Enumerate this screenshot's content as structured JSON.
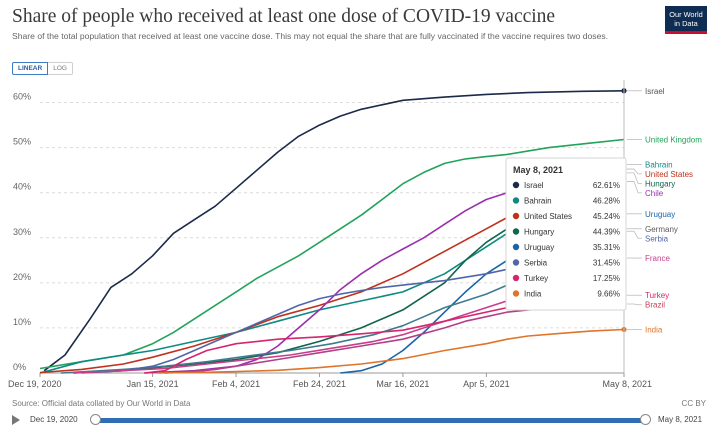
{
  "header": {
    "title": "Share of people who received at least one dose of COVID-19 vaccine",
    "subtitle": "Share of the total population that received at least one vaccine dose. This may not equal the share that are fully vaccinated if the vaccine requires two doses.",
    "logo_line1": "Our World",
    "logo_line2": "in Data"
  },
  "controls": {
    "linear_label": "LINEAR",
    "log_label": "LOG",
    "active_scale": "linear"
  },
  "footer": {
    "source": "Source: Official data collated by Our World in Data",
    "license": "CC BY"
  },
  "timeline": {
    "start_label": "Dec 19, 2020",
    "end_label": "May 8, 2021",
    "start_fraction": 0,
    "end_fraction": 1
  },
  "tooltip": {
    "date": "May 8, 2021",
    "rows": [
      {
        "country": "Israel",
        "value": "62.61%",
        "color": "#1b2a48"
      },
      {
        "country": "Bahrain",
        "value": "46.28%",
        "color": "#0f8a83"
      },
      {
        "country": "United States",
        "value": "45.24%",
        "color": "#c1301c"
      },
      {
        "country": "Hungary",
        "value": "44.39%",
        "color": "#10654a"
      },
      {
        "country": "Uruguay",
        "value": "35.31%",
        "color": "#1a64a8"
      },
      {
        "country": "Serbia",
        "value": "31.45%",
        "color": "#5166a8"
      },
      {
        "country": "Turkey",
        "value": "17.25%",
        "color": "#d6246e"
      },
      {
        "country": "India",
        "value": "9.66%",
        "color": "#e0742a"
      }
    ]
  },
  "chart_data": {
    "type": "line",
    "title": "Share of people who received at least one dose of COVID-19 vaccine",
    "ylabel": "",
    "xlabel": "",
    "ylim": [
      0,
      65
    ],
    "y_ticks": [
      0,
      10,
      20,
      30,
      40,
      50,
      60
    ],
    "y_tick_labels": [
      "0%",
      "10%",
      "20%",
      "30%",
      "40%",
      "50%",
      "60%"
    ],
    "x_range_days": [
      0,
      140
    ],
    "x_ticks": [
      {
        "day": 0,
        "label": "Dec 19, 2020"
      },
      {
        "day": 27,
        "label": "Jan 15, 2021"
      },
      {
        "day": 47,
        "label": "Feb 4, 2021"
      },
      {
        "day": 67,
        "label": "Feb 24, 2021"
      },
      {
        "day": 87,
        "label": "Mar 16, 2021"
      },
      {
        "day": 107,
        "label": "Apr 5, 2021"
      },
      {
        "day": 140,
        "label": "May 8, 2021"
      }
    ],
    "grid": true,
    "legend": "right",
    "series": [
      {
        "name": "Israel",
        "color": "#1b2a48",
        "label": "Israel",
        "label_color": "#555555",
        "end_dot": true,
        "points": [
          [
            1,
            0.5
          ],
          [
            6,
            4
          ],
          [
            12,
            12
          ],
          [
            17,
            19
          ],
          [
            22,
            22
          ],
          [
            27,
            26
          ],
          [
            32,
            31
          ],
          [
            37,
            34
          ],
          [
            42,
            37
          ],
          [
            47,
            41
          ],
          [
            52,
            45
          ],
          [
            57,
            49
          ],
          [
            62,
            52.5
          ],
          [
            67,
            55
          ],
          [
            72,
            57
          ],
          [
            77,
            58.5
          ],
          [
            82,
            59.5
          ],
          [
            87,
            60.5
          ],
          [
            97,
            61.2
          ],
          [
            107,
            61.8
          ],
          [
            117,
            62.2
          ],
          [
            130,
            62.5
          ],
          [
            140,
            62.61
          ]
        ]
      },
      {
        "name": "United Kingdom",
        "color": "#22a35a",
        "label": "United Kingdom",
        "label_color": "#22a35a",
        "end_dot": false,
        "points": [
          [
            0,
            1
          ],
          [
            10,
            2.5
          ],
          [
            20,
            4
          ],
          [
            27,
            6.5
          ],
          [
            32,
            9
          ],
          [
            37,
            12
          ],
          [
            42,
            15
          ],
          [
            47,
            18
          ],
          [
            52,
            21
          ],
          [
            57,
            23.5
          ],
          [
            62,
            26
          ],
          [
            67,
            29
          ],
          [
            72,
            32
          ],
          [
            77,
            35
          ],
          [
            82,
            38.5
          ],
          [
            87,
            42
          ],
          [
            92,
            44.5
          ],
          [
            97,
            46.5
          ],
          [
            102,
            47.5
          ],
          [
            107,
            48
          ],
          [
            112,
            48.5
          ],
          [
            122,
            50
          ],
          [
            132,
            51
          ],
          [
            140,
            51.8
          ]
        ]
      },
      {
        "name": "Bahrain",
        "color": "#0f8a83",
        "label": "Bahrain",
        "label_color": "#0f8a83",
        "end_dot": true,
        "points": [
          [
            0,
            0
          ],
          [
            10,
            2.5
          ],
          [
            20,
            4
          ],
          [
            27,
            5
          ],
          [
            37,
            7
          ],
          [
            47,
            9
          ],
          [
            57,
            11.5
          ],
          [
            67,
            14
          ],
          [
            77,
            16
          ],
          [
            87,
            18
          ],
          [
            97,
            22
          ],
          [
            107,
            28
          ],
          [
            112,
            31
          ],
          [
            117,
            33.5
          ],
          [
            125,
            38
          ],
          [
            132,
            42
          ],
          [
            140,
            46.28
          ]
        ]
      },
      {
        "name": "United States",
        "color": "#c1301c",
        "label": "United States",
        "label_color": "#c1301c",
        "end_dot": true,
        "points": [
          [
            0,
            0.1
          ],
          [
            10,
            0.8
          ],
          [
            20,
            2
          ],
          [
            27,
            3.5
          ],
          [
            37,
            6
          ],
          [
            47,
            9
          ],
          [
            57,
            12.5
          ],
          [
            67,
            15
          ],
          [
            77,
            18
          ],
          [
            87,
            22
          ],
          [
            97,
            27
          ],
          [
            107,
            32
          ],
          [
            112,
            34.5
          ],
          [
            117,
            36.5
          ],
          [
            125,
            40
          ],
          [
            132,
            43
          ],
          [
            140,
            45.24
          ]
        ]
      },
      {
        "name": "Hungary",
        "color": "#10654a",
        "label": "Hungary",
        "label_color": "#10654a",
        "end_dot": true,
        "points": [
          [
            8,
            0
          ],
          [
            20,
            0.5
          ],
          [
            37,
            2
          ],
          [
            47,
            3
          ],
          [
            57,
            4.5
          ],
          [
            67,
            7
          ],
          [
            77,
            10
          ],
          [
            87,
            14
          ],
          [
            97,
            20
          ],
          [
            102,
            25
          ],
          [
            107,
            29
          ],
          [
            112,
            32
          ],
          [
            117,
            35
          ],
          [
            125,
            38.5
          ],
          [
            132,
            42
          ],
          [
            140,
            44.39
          ]
        ]
      },
      {
        "name": "Chile",
        "color": "#9b2fae",
        "label": "Chile",
        "label_color": "#9b2fae",
        "end_dot": false,
        "points": [
          [
            25,
            0
          ],
          [
            37,
            0.5
          ],
          [
            47,
            1.5
          ],
          [
            52,
            3
          ],
          [
            57,
            6
          ],
          [
            62,
            10
          ],
          [
            67,
            14
          ],
          [
            72,
            18.5
          ],
          [
            77,
            22
          ],
          [
            82,
            25
          ],
          [
            87,
            27.5
          ],
          [
            92,
            30
          ],
          [
            97,
            33
          ],
          [
            102,
            36
          ],
          [
            107,
            38.5
          ],
          [
            112,
            40
          ],
          [
            122,
            41
          ],
          [
            132,
            41.8
          ],
          [
            140,
            42.5
          ]
        ]
      },
      {
        "name": "Uruguay",
        "color": "#1a64a8",
        "label": "Uruguay",
        "label_color": "#1a64a8",
        "end_dot": true,
        "points": [
          [
            72,
            0
          ],
          [
            77,
            0.5
          ],
          [
            82,
            2
          ],
          [
            87,
            5
          ],
          [
            92,
            9
          ],
          [
            97,
            13.5
          ],
          [
            102,
            18
          ],
          [
            107,
            22
          ],
          [
            112,
            25
          ],
          [
            117,
            27
          ],
          [
            125,
            30
          ],
          [
            132,
            33
          ],
          [
            140,
            35.31
          ]
        ]
      },
      {
        "name": "Germany",
        "color": "#3e7b8f",
        "label": "Germany",
        "label_color": "#5a5a5a",
        "end_dot": false,
        "points": [
          [
            5,
            0
          ],
          [
            20,
            0.8
          ],
          [
            30,
            1.5
          ],
          [
            40,
            2.5
          ],
          [
            50,
            3.8
          ],
          [
            60,
            5
          ],
          [
            70,
            6.5
          ],
          [
            80,
            8.5
          ],
          [
            87,
            10.5
          ],
          [
            92,
            12.5
          ],
          [
            97,
            14.5
          ],
          [
            102,
            16
          ],
          [
            107,
            17.5
          ],
          [
            112,
            19.5
          ],
          [
            117,
            22
          ],
          [
            122,
            24.5
          ],
          [
            128,
            27
          ],
          [
            134,
            29.5
          ],
          [
            140,
            32
          ]
        ]
      },
      {
        "name": "Serbia",
        "color": "#5166a8",
        "label": "Serbia",
        "label_color": "#5166a8",
        "end_dot": true,
        "points": [
          [
            10,
            0
          ],
          [
            20,
            0.5
          ],
          [
            27,
            1.5
          ],
          [
            32,
            3
          ],
          [
            37,
            5
          ],
          [
            42,
            7
          ],
          [
            47,
            9
          ],
          [
            52,
            11
          ],
          [
            57,
            13
          ],
          [
            62,
            15
          ],
          [
            67,
            16.5
          ],
          [
            72,
            17.5
          ],
          [
            77,
            18.3
          ],
          [
            82,
            19
          ],
          [
            87,
            19.5
          ],
          [
            97,
            20.5
          ],
          [
            107,
            22
          ],
          [
            112,
            23
          ],
          [
            117,
            24
          ],
          [
            125,
            26
          ],
          [
            132,
            28.5
          ],
          [
            140,
            31.45
          ]
        ]
      },
      {
        "name": "France",
        "color": "#c73e8a",
        "label": "France",
        "label_color": "#c73e8a",
        "end_dot": false,
        "points": [
          [
            8,
            0
          ],
          [
            20,
            0.5
          ],
          [
            30,
            1
          ],
          [
            40,
            2
          ],
          [
            50,
            3
          ],
          [
            60,
            4
          ],
          [
            70,
            5.5
          ],
          [
            80,
            7
          ],
          [
            87,
            8.5
          ],
          [
            92,
            10
          ],
          [
            97,
            11.5
          ],
          [
            102,
            13
          ],
          [
            107,
            14.5
          ],
          [
            112,
            16
          ],
          [
            117,
            18
          ],
          [
            122,
            19.5
          ],
          [
            128,
            21.5
          ],
          [
            134,
            23.5
          ],
          [
            140,
            25.5
          ]
        ]
      },
      {
        "name": "Turkey",
        "color": "#d6246e",
        "label": "Turkey",
        "label_color": "#d6246e",
        "end_dot": true,
        "points": [
          [
            25,
            0
          ],
          [
            30,
            0.5
          ],
          [
            35,
            3
          ],
          [
            40,
            5
          ],
          [
            47,
            6.5
          ],
          [
            57,
            7.5
          ],
          [
            67,
            8
          ],
          [
            77,
            8.7
          ],
          [
            87,
            9.5
          ],
          [
            97,
            11.5
          ],
          [
            107,
            13.5
          ],
          [
            112,
            14.5
          ],
          [
            117,
            15.5
          ],
          [
            125,
            16.5
          ],
          [
            132,
            17
          ],
          [
            140,
            17.25
          ]
        ]
      },
      {
        "name": "Brazil",
        "color": "#b33f86",
        "label": "Brazil",
        "label_color": "#c73e5a",
        "end_dot": false,
        "points": [
          [
            30,
            0
          ],
          [
            37,
            0.3
          ],
          [
            42,
            0.8
          ],
          [
            47,
            1.5
          ],
          [
            57,
            3
          ],
          [
            67,
            4.5
          ],
          [
            77,
            6
          ],
          [
            87,
            7.5
          ],
          [
            97,
            10
          ],
          [
            102,
            11.5
          ],
          [
            107,
            12.5
          ],
          [
            112,
            13.5
          ],
          [
            117,
            14
          ],
          [
            125,
            14.6
          ],
          [
            132,
            15
          ],
          [
            140,
            15.3
          ]
        ]
      },
      {
        "name": "India",
        "color": "#e0742a",
        "label": "India",
        "label_color": "#e0742a",
        "end_dot": true,
        "points": [
          [
            28,
            0
          ],
          [
            37,
            0.1
          ],
          [
            47,
            0.3
          ],
          [
            57,
            0.6
          ],
          [
            67,
            1.2
          ],
          [
            77,
            2
          ],
          [
            87,
            3.2
          ],
          [
            97,
            5
          ],
          [
            107,
            6.5
          ],
          [
            112,
            7.5
          ],
          [
            117,
            8.2
          ],
          [
            125,
            8.8
          ],
          [
            132,
            9.3
          ],
          [
            140,
            9.66
          ]
        ]
      }
    ],
    "tooltip_line_day": 140
  }
}
